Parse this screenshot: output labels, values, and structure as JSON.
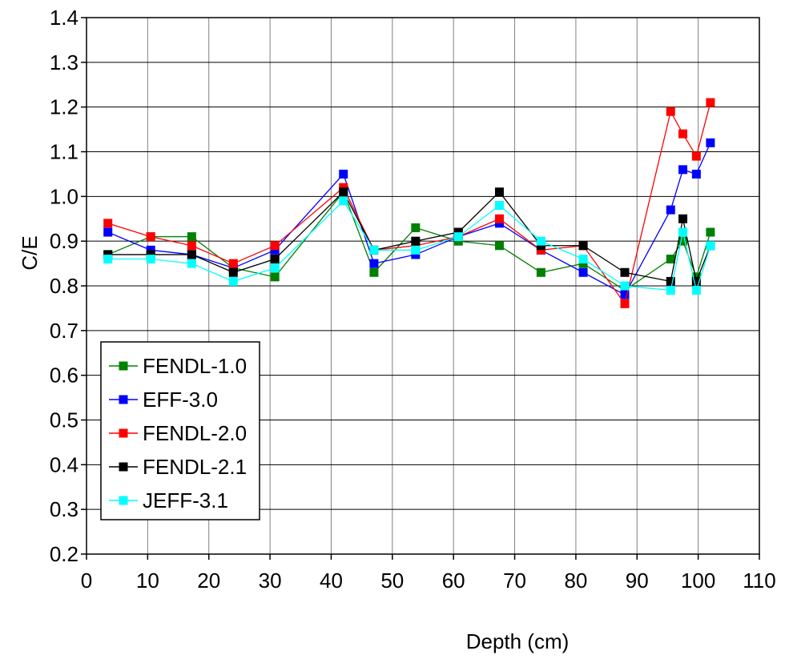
{
  "chart_data": {
    "type": "line",
    "xlabel": "Depth (cm)",
    "ylabel": "C/E",
    "xlim": [
      0,
      110
    ],
    "ylim": [
      0.2,
      1.4
    ],
    "x_ticks": [
      "0",
      "10",
      "20",
      "30",
      "40",
      "50",
      "60",
      "70",
      "80",
      "90",
      "100",
      "110"
    ],
    "y_ticks": [
      "0.2",
      "0.3",
      "0.4",
      "0.5",
      "0.6",
      "0.7",
      "0.8",
      "0.9",
      "1.0",
      "1.1",
      "1.2",
      "1.3",
      "1.4"
    ],
    "grid": true,
    "legend_position": "bottom-left",
    "x": [
      3.5,
      10.5,
      17.2,
      24.0,
      30.8,
      42.0,
      47.0,
      53.8,
      60.8,
      67.5,
      74.3,
      81.2,
      88.0,
      95.5,
      97.5,
      99.7,
      102.0
    ],
    "series": [
      {
        "name": "FENDL-1.0",
        "color": "#008000",
        "values": [
          0.87,
          0.91,
          0.91,
          0.84,
          0.82,
          1.01,
          0.83,
          0.93,
          0.9,
          0.89,
          0.83,
          0.85,
          0.79,
          0.86,
          0.9,
          0.82,
          0.92
        ]
      },
      {
        "name": "EFF-3.0",
        "color": "#0000ff",
        "values": [
          0.92,
          0.88,
          0.87,
          0.84,
          0.88,
          1.05,
          0.85,
          0.87,
          0.91,
          0.94,
          0.88,
          0.83,
          0.78,
          0.97,
          1.06,
          1.05,
          1.12
        ]
      },
      {
        "name": "FENDL-2.0",
        "color": "#ff0000",
        "values": [
          0.94,
          0.91,
          0.89,
          0.85,
          0.89,
          1.02,
          0.88,
          0.89,
          0.91,
          0.95,
          0.88,
          0.89,
          0.76,
          1.19,
          1.14,
          1.09,
          1.21
        ]
      },
      {
        "name": "FENDL-2.1",
        "color": "#000000",
        "values": [
          0.87,
          0.87,
          0.87,
          0.83,
          0.86,
          1.01,
          0.88,
          0.9,
          0.92,
          1.01,
          0.89,
          0.89,
          0.83,
          0.81,
          0.95,
          0.81,
          0.89
        ]
      },
      {
        "name": "JEFF-3.1",
        "color": "#00ffff",
        "values": [
          0.86,
          0.86,
          0.85,
          0.81,
          0.84,
          0.99,
          0.88,
          0.88,
          0.91,
          0.98,
          0.9,
          0.86,
          0.8,
          0.79,
          0.92,
          0.79,
          0.89
        ]
      }
    ]
  }
}
